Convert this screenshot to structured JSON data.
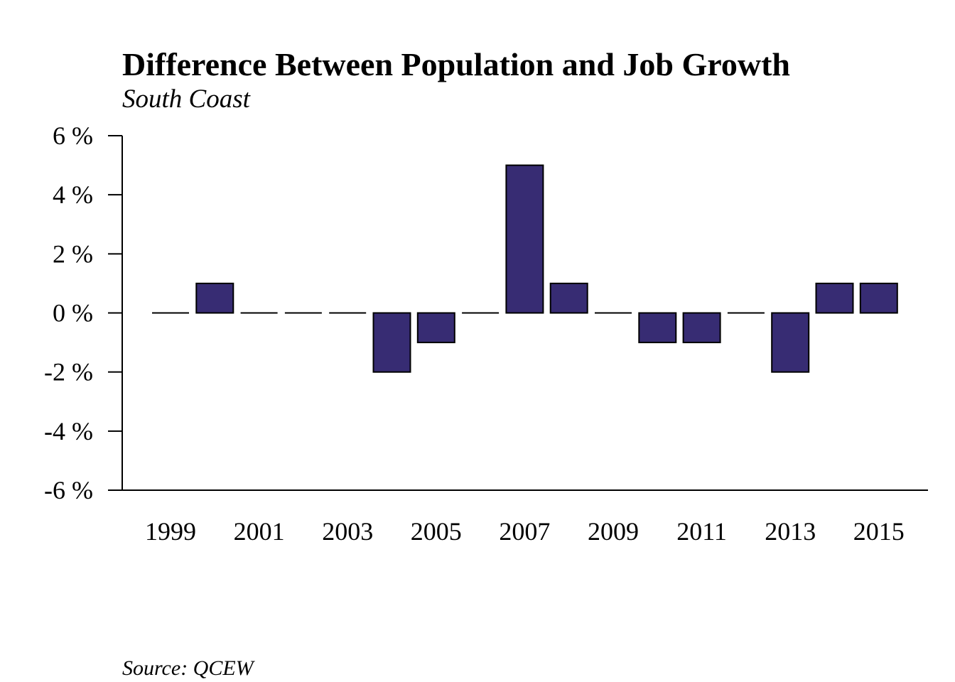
{
  "chart_data": {
    "type": "bar",
    "title": "Difference Between Population and Job Growth",
    "subtitle": "South Coast",
    "source": "Source: QCEW",
    "categories": [
      "1999",
      "2000",
      "2001",
      "2002",
      "2003",
      "2004",
      "2005",
      "2006",
      "2007",
      "2008",
      "2009",
      "2010",
      "2011",
      "2012",
      "2013",
      "2014",
      "2015"
    ],
    "values": [
      0,
      1,
      0,
      0,
      0,
      -2,
      -1,
      0,
      5,
      1,
      0,
      -1,
      -1,
      0,
      -2,
      1,
      1
    ],
    "x_tick_labels": [
      "1999",
      "2001",
      "2003",
      "2005",
      "2007",
      "2009",
      "2011",
      "2013",
      "2015"
    ],
    "y_ticks": [
      -6,
      -4,
      -2,
      0,
      2,
      4,
      6
    ],
    "y_tick_suffix": " %",
    "ylim": [
      -6,
      6
    ],
    "xlabel": "",
    "ylabel": "",
    "grid": false,
    "legend": "none",
    "bar_color": "#372c73",
    "bar_outline": "#000000"
  }
}
